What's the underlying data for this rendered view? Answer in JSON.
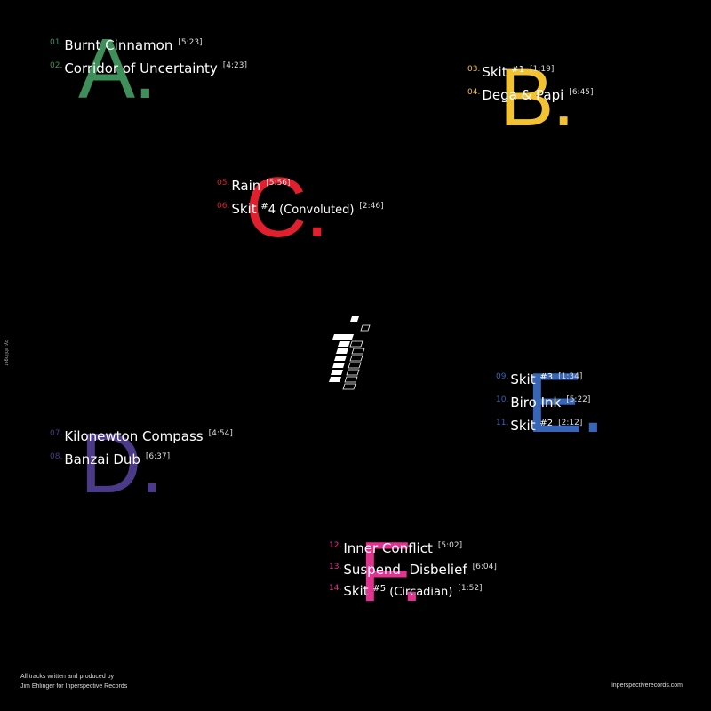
{
  "sides": [
    {
      "letter": "A.",
      "color": "#3f8f5b",
      "tracks": [
        {
          "num": "01.",
          "title": "Burnt Cinnamon",
          "hash": "",
          "extra": "",
          "dur": "[5:23]"
        },
        {
          "num": "02.",
          "title": "Corridor of Uncertainty",
          "hash": "",
          "extra": "",
          "dur": "[4:23]"
        }
      ]
    },
    {
      "letter": "B.",
      "color": "#f2c233",
      "tracks": [
        {
          "num": "03.",
          "title": "Skit ",
          "hash": "#1",
          "extra": "",
          "dur": "[1:19]"
        },
        {
          "num": "04.",
          "title": "Dega & Papi",
          "hash": "",
          "extra": "",
          "dur": "[6:45]"
        }
      ]
    },
    {
      "letter": "C.",
      "color": "#e0202e",
      "tracks": [
        {
          "num": "05.",
          "title": "Rain",
          "hash": "",
          "extra": "",
          "dur": "[5:56]"
        },
        {
          "num": "06.",
          "title": "Skit ",
          "hash": "#",
          "extra": "4 (Convoluted)",
          "dur": "[2:46]"
        }
      ]
    },
    {
      "letter": "D.",
      "color": "#4b3a87",
      "tracks": [
        {
          "num": "07.",
          "title": "Kilonewton Compass",
          "hash": "",
          "extra": "",
          "dur": "[4:54]"
        },
        {
          "num": "08.",
          "title": "Banzai Dub",
          "hash": "",
          "extra": "",
          "dur": "[6:37]"
        }
      ]
    },
    {
      "letter": "E.",
      "color": "#3765b8",
      "tracks": [
        {
          "num": "09.",
          "title": "Skit ",
          "hash": "#3",
          "extra": "",
          "dur": "[1:34]"
        },
        {
          "num": "10.",
          "title": "Biro Ink",
          "hash": "",
          "extra": "",
          "dur": "[5:22]"
        },
        {
          "num": "11.",
          "title": "Skit ",
          "hash": "#2",
          "extra": "",
          "dur": "[2:12]"
        }
      ]
    },
    {
      "letter": "F.",
      "color": "#e0338f",
      "tracks": [
        {
          "num": "12.",
          "title": "Inner Conflict",
          "hash": "",
          "extra": "",
          "dur": "[5:02]"
        },
        {
          "num": "13.",
          "title": "Suspend  Disbelief",
          "hash": "",
          "extra": "",
          "dur": "[6:04]"
        },
        {
          "num": "14.",
          "title": "Skit ",
          "hash": "#5",
          "extra": " (Circadian)",
          "dur": "[1:52]"
        }
      ]
    }
  ],
  "credits": {
    "line1": "All tracks written and produced by",
    "line2": "Jim Ehlinger for Inperspective Records",
    "url": "inperspectiverecords.com",
    "vertical": "by: ehlinger"
  }
}
